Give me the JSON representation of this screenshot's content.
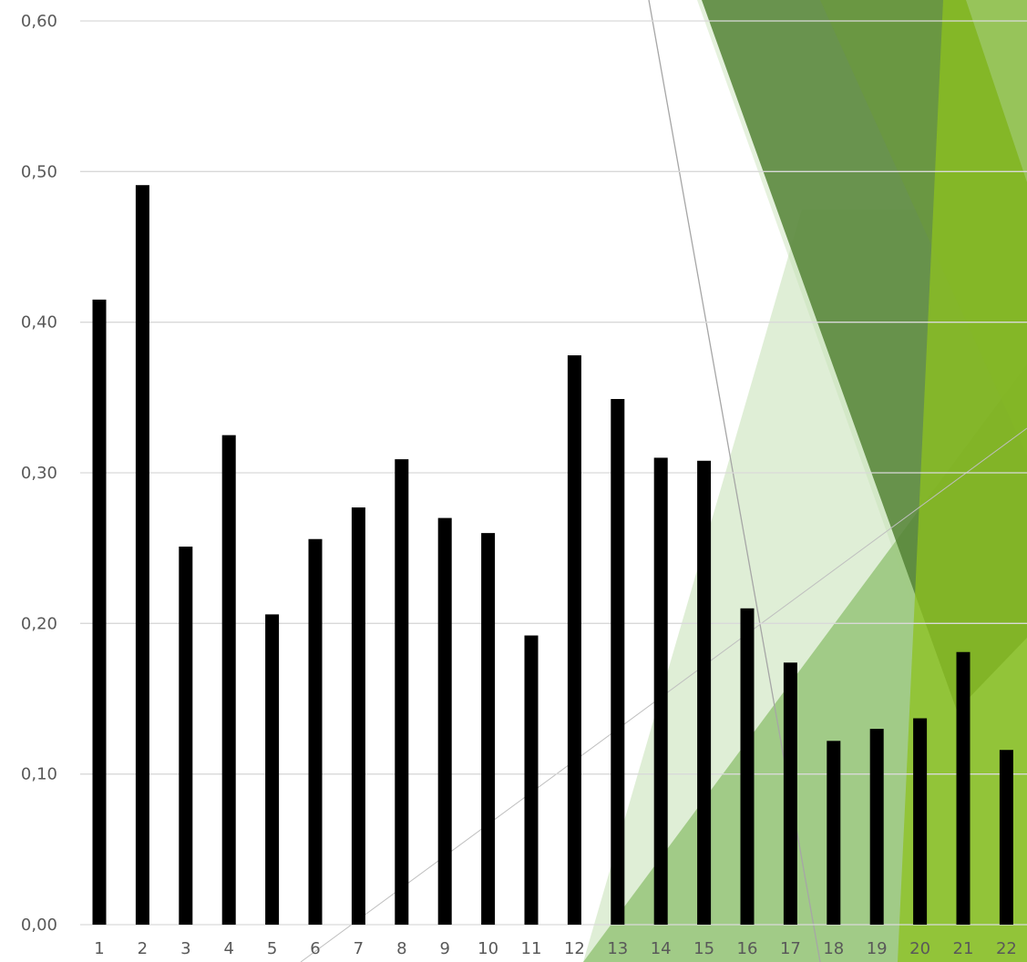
{
  "chart_data": {
    "type": "bar",
    "title": "",
    "xlabel": "",
    "ylabel": "",
    "categories": [
      "1",
      "2",
      "3",
      "4",
      "5",
      "6",
      "7",
      "8",
      "9",
      "10",
      "11",
      "12",
      "13",
      "14",
      "15",
      "16",
      "17",
      "18",
      "19",
      "20",
      "21",
      "22"
    ],
    "values": [
      0.415,
      0.491,
      0.251,
      0.325,
      0.206,
      0.256,
      0.277,
      0.309,
      0.27,
      0.26,
      0.192,
      0.378,
      0.349,
      0.31,
      0.308,
      0.21,
      0.174,
      0.122,
      0.13,
      0.137,
      0.181,
      0.116
    ],
    "ylim": [
      0,
      0.6
    ],
    "yticks": [
      0,
      0.1,
      0.2,
      0.3,
      0.4,
      0.5,
      0.6
    ],
    "ytick_labels": [
      "0,00",
      "0,10",
      "0,20",
      "0,30",
      "0,40",
      "0,50",
      "0,60"
    ],
    "grid": true,
    "bar_color": "#000000",
    "background_accent_colors": [
      "#548235",
      "#70ad47",
      "#8dc21f",
      "#c5e0b4"
    ]
  }
}
